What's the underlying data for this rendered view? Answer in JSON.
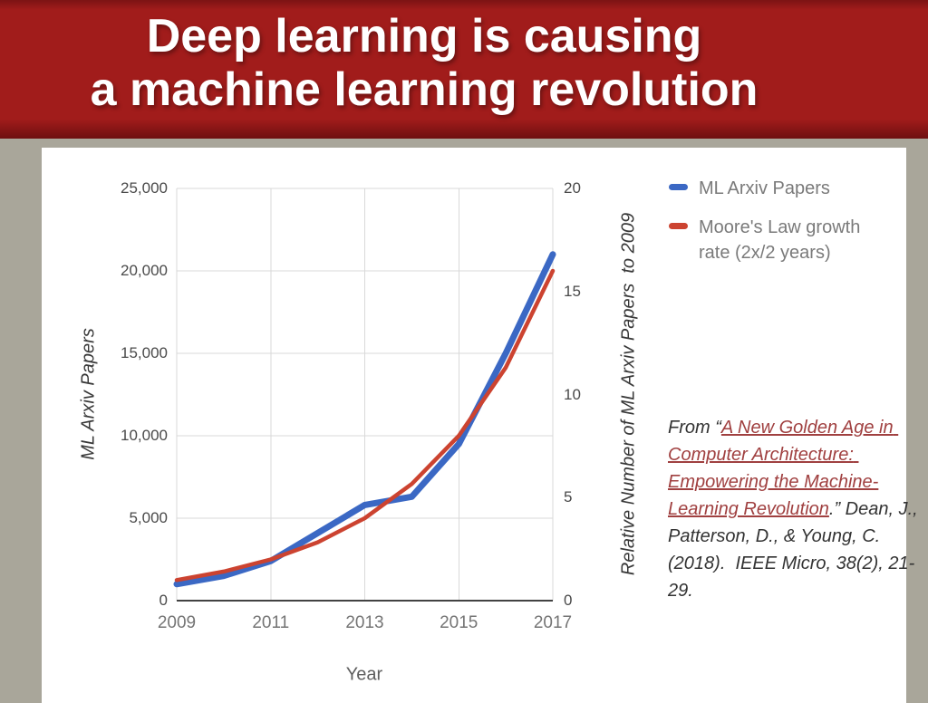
{
  "header": {
    "title_line1": "Deep learning is causing",
    "title_line2": "a machine learning revolution"
  },
  "colors": {
    "header-red": "#a11c1b",
    "bg-tan": "#a9a69a",
    "card-white": "#ffffff",
    "grid-gray": "#d9d9d9",
    "axis-dark": "#424242",
    "link-red": "#a04040",
    "series-blue": "#3b68c4",
    "series-red": "#cc4330"
  },
  "citation": {
    "prefix": "From “",
    "link": "A New Golden Age in Computer Architecture: Empowering the Machine-Learning Revolution",
    "suffix": ".” Dean, J., Patterson, D., & Young, C. (2018).  IEEE Micro, 38(2), 21-29."
  },
  "chart_data": {
    "type": "line",
    "title": "",
    "x": [
      2009,
      2010,
      2011,
      2012,
      2013,
      2014,
      2015,
      2016,
      2017
    ],
    "series": [
      {
        "name": "ML Arxiv Papers",
        "color": "#3b68c4",
        "axis": "left",
        "values": [
          1000,
          1500,
          2400,
          4100,
          5800,
          6300,
          9500,
          15000,
          21000
        ]
      },
      {
        "name": "Moore's Law growth rate (2x/2 years)",
        "color": "#cc4330",
        "axis": "right",
        "values": [
          1,
          1.41,
          2,
          2.83,
          4,
          5.66,
          8,
          11.31,
          16
        ]
      }
    ],
    "left_axis": {
      "label": "ML Arxiv Papers",
      "min": 0,
      "max": 25000,
      "ticks": [
        "25,000",
        "20,000",
        "15,000",
        "10,000",
        "5,000",
        "0"
      ]
    },
    "right_axis": {
      "label": "Relative Number of ML Arxiv Papers  to 2009",
      "min": 0,
      "max": 20,
      "ticks": [
        "20",
        "15",
        "10",
        "5",
        "0"
      ]
    },
    "x_axis": {
      "label": "Year",
      "min": 2009,
      "max": 2017,
      "ticks": [
        "2009",
        "2011",
        "2013",
        "2015",
        "2017"
      ]
    },
    "grid": true,
    "legend_position": "right"
  }
}
